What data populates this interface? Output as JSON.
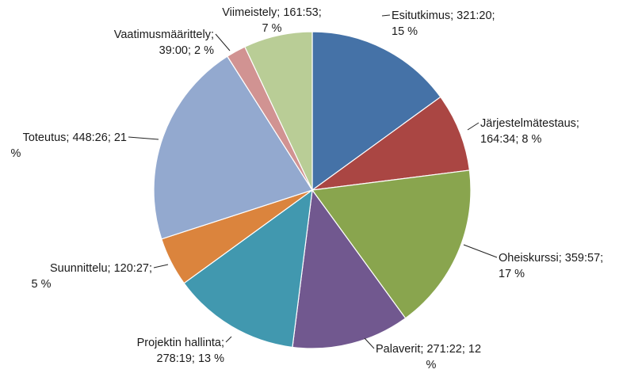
{
  "chart_data": {
    "type": "pie",
    "title": "",
    "legend": "none",
    "slices": [
      {
        "label": "Esitutkimus",
        "time": "321:20",
        "percent": 15,
        "label_lines": [
          "Esitutkimus; 321:20;",
          "15 %"
        ],
        "color": "#4572A7"
      },
      {
        "label": "Järjestelmätestaus",
        "time": "164:34",
        "percent": 8,
        "label_lines": [
          "Järjestelmätestaus;",
          "164:34; 8 %"
        ],
        "color": "#AA4643"
      },
      {
        "label": "Oheiskurssi",
        "time": "359:57",
        "percent": 17,
        "label_lines": [
          "Oheiskurssi; 359:57;",
          "17 %"
        ],
        "color": "#89A54E"
      },
      {
        "label": "Palaverit",
        "time": "271:22",
        "percent": 12,
        "label_lines": [
          "Palaverit; 271:22; 12",
          "%"
        ],
        "color": "#71588F"
      },
      {
        "label": "Projektin hallinta",
        "time": "278:19",
        "percent": 13,
        "label_lines": [
          "Projektin hallinta;",
          "278:19; 13 %"
        ],
        "color": "#4198AF"
      },
      {
        "label": "Suunnittelu",
        "time": "120:27",
        "percent": 5,
        "label_lines": [
          "Suunnittelu; 120:27;",
          "5 %"
        ],
        "color": "#DB843D"
      },
      {
        "label": "Toteutus",
        "time": "448:26",
        "percent": 21,
        "label_lines": [
          "Toteutus; 448:26; 21",
          "%"
        ],
        "color": "#93A9CF"
      },
      {
        "label": "Vaatimusmäärittely",
        "time": "39:00",
        "percent": 2,
        "label_lines": [
          "Vaatimusmäärittely;",
          "39:00; 2 %"
        ],
        "color": "#D19392"
      },
      {
        "label": "Viimeistely",
        "time": "161:53",
        "percent": 7,
        "label_lines": [
          "Viimeistely; 161:53;",
          "7 %"
        ],
        "color": "#B9CD96"
      }
    ]
  }
}
